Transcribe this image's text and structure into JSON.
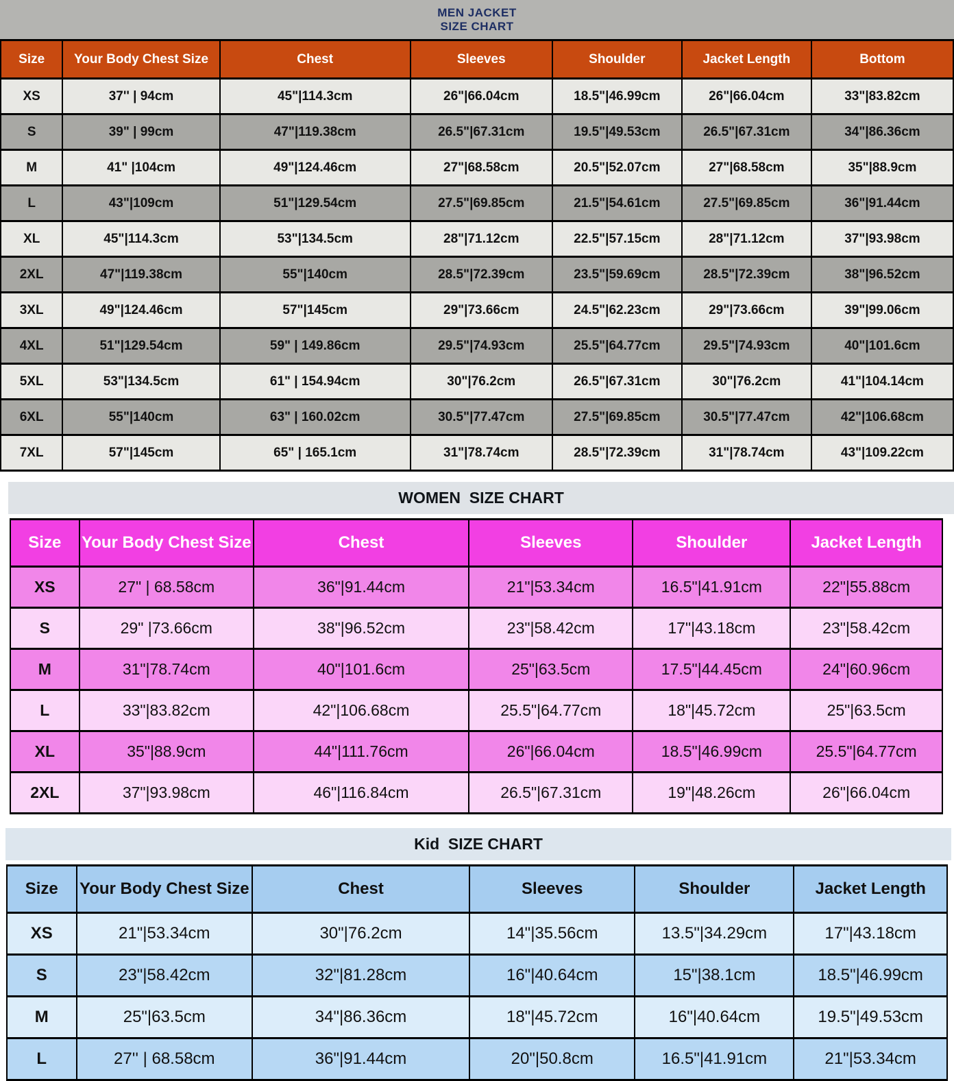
{
  "ui": {
    "titles": {
      "men_line1": "MEN JACKET",
      "men_line2": "SIZE CHART",
      "women": "WOMEN  SIZE CHART",
      "kid": "Kid  SIZE CHART"
    }
  },
  "colors": {
    "border": "#000000",
    "cell_text": "#111111",
    "men_title_bg": "#b4b4b1",
    "men_title_text": "#1d2e63",
    "men_header_bg": "#c84a10",
    "men_header_text": "#ffffff",
    "men_row_a": "#e8e8e4",
    "men_row_b": "#a8a8a4",
    "women_title_bg": "#dfe3e7",
    "women_title_text": "#101418",
    "women_header_bg": "#f23fe3",
    "women_header_text": "#ffffff",
    "women_row_a": "#f186e9",
    "women_row_b": "#fbd6f9",
    "kid_title_bg": "#dde6ee",
    "kid_title_text": "#101418",
    "kid_header_bg": "#a6cdf0",
    "kid_header_text": "#101010",
    "kid_row_a": "#dcedfa",
    "kid_row_b": "#b7d8f4"
  },
  "chart_data": [
    {
      "type": "table",
      "title": "MEN JACKET SIZE CHART",
      "columns": [
        "Size",
        "Your Body Chest Size",
        "Chest",
        "Sleeves",
        "Shoulder",
        "Jacket Length",
        "Bottom"
      ],
      "rows": [
        [
          "XS",
          "37'' | 94cm",
          "45\"|114.3cm",
          "26\"|66.04cm",
          "18.5\"|46.99cm",
          "26\"|66.04cm",
          "33\"|83.82cm"
        ],
        [
          "S",
          "39\" | 99cm",
          "47\"|119.38cm",
          "26.5\"|67.31cm",
          "19.5\"|49.53cm",
          "26.5\"|67.31cm",
          "34\"|86.36cm"
        ],
        [
          "M",
          "41\" |104cm",
          "49\"|124.46cm",
          "27\"|68.58cm",
          "20.5\"|52.07cm",
          "27\"|68.58cm",
          "35\"|88.9cm"
        ],
        [
          "L",
          "43\"|109cm",
          "51\"|129.54cm",
          "27.5\"|69.85cm",
          "21.5\"|54.61cm",
          "27.5\"|69.85cm",
          "36\"|91.44cm"
        ],
        [
          "XL",
          "45\"|114.3cm",
          "53\"|134.5cm",
          "28\"|71.12cm",
          "22.5\"|57.15cm",
          "28\"|71.12cm",
          "37\"|93.98cm"
        ],
        [
          "2XL",
          "47\"|119.38cm",
          "55\"|140cm",
          "28.5\"|72.39cm",
          "23.5\"|59.69cm",
          "28.5\"|72.39cm",
          "38\"|96.52cm"
        ],
        [
          "3XL",
          "49\"|124.46cm",
          "57\"|145cm",
          "29\"|73.66cm",
          "24.5\"|62.23cm",
          "29\"|73.66cm",
          "39\"|99.06cm"
        ],
        [
          "4XL",
          "51\"|129.54cm",
          "59\" | 149.86cm",
          "29.5\"|74.93cm",
          "25.5\"|64.77cm",
          "29.5\"|74.93cm",
          "40\"|101.6cm"
        ],
        [
          "5XL",
          "53\"|134.5cm",
          "61\" | 154.94cm",
          "30\"|76.2cm",
          "26.5\"|67.31cm",
          "30\"|76.2cm",
          "41\"|104.14cm"
        ],
        [
          "6XL",
          "55\"|140cm",
          "63\" | 160.02cm",
          "30.5\"|77.47cm",
          "27.5\"|69.85cm",
          "30.5\"|77.47cm",
          "42\"|106.68cm"
        ],
        [
          "7XL",
          "57\"|145cm",
          "65\" | 165.1cm",
          "31\"|78.74cm",
          "28.5\"|72.39cm",
          "31\"|78.74cm",
          "43\"|109.22cm"
        ]
      ]
    },
    {
      "type": "table",
      "title": "WOMEN SIZE CHART",
      "columns": [
        "Size",
        "Your Body Chest Size",
        "Chest",
        "Sleeves",
        "Shoulder",
        "Jacket Length"
      ],
      "rows": [
        [
          "XS",
          "27\" | 68.58cm",
          "36\"|91.44cm",
          "21\"|53.34cm",
          "16.5\"|41.91cm",
          "22\"|55.88cm"
        ],
        [
          "S",
          "29\" |73.66cm",
          "38\"|96.52cm",
          "23\"|58.42cm",
          "17\"|43.18cm",
          "23\"|58.42cm"
        ],
        [
          "M",
          "31\"|78.74cm",
          "40\"|101.6cm",
          "25\"|63.5cm",
          "17.5\"|44.45cm",
          "24\"|60.96cm"
        ],
        [
          "L",
          "33\"|83.82cm",
          "42\"|106.68cm",
          "25.5\"|64.77cm",
          "18\"|45.72cm",
          "25\"|63.5cm"
        ],
        [
          "XL",
          "35\"|88.9cm",
          "44\"|111.76cm",
          "26\"|66.04cm",
          "18.5\"|46.99cm",
          "25.5\"|64.77cm"
        ],
        [
          "2XL",
          "37\"|93.98cm",
          "46\"|116.84cm",
          "26.5\"|67.31cm",
          "19\"|48.26cm",
          "26\"|66.04cm"
        ]
      ]
    },
    {
      "type": "table",
      "title": "Kid SIZE CHART",
      "columns": [
        "Size",
        "Your Body Chest Size",
        "Chest",
        "Sleeves",
        "Shoulder",
        "Jacket Length"
      ],
      "rows": [
        [
          "XS",
          "21\"|53.34cm",
          "30\"|76.2cm",
          "14\"|35.56cm",
          "13.5\"|34.29cm",
          "17\"|43.18cm"
        ],
        [
          "S",
          "23\"|58.42cm",
          "32\"|81.28cm",
          "16\"|40.64cm",
          "15\"|38.1cm",
          "18.5\"|46.99cm"
        ],
        [
          "M",
          "25\"|63.5cm",
          "34\"|86.36cm",
          "18\"|45.72cm",
          "16\"|40.64cm",
          "19.5\"|49.53cm"
        ],
        [
          "L",
          "27'' | 68.58cm",
          "36\"|91.44cm",
          "20\"|50.8cm",
          "16.5\"|41.91cm",
          "21\"|53.34cm"
        ]
      ]
    }
  ]
}
